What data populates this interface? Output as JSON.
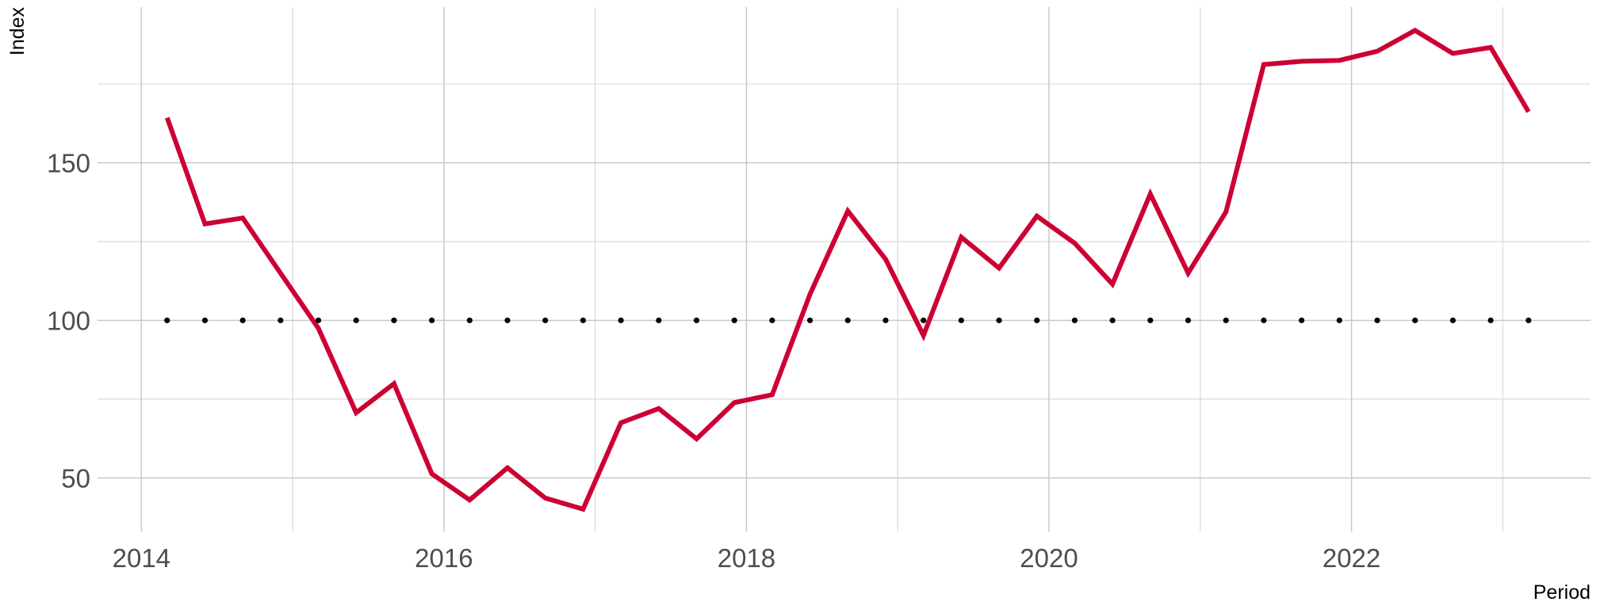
{
  "chart_data": {
    "type": "line",
    "x_label": "Period",
    "y_label": "Index",
    "x": [
      2014.17,
      2014.42,
      2014.67,
      2014.92,
      2015.17,
      2015.42,
      2015.67,
      2015.92,
      2016.17,
      2016.42,
      2016.67,
      2016.92,
      2017.17,
      2017.42,
      2017.67,
      2017.92,
      2018.17,
      2018.42,
      2018.67,
      2018.92,
      2019.17,
      2019.42,
      2019.67,
      2019.92,
      2020.17,
      2020.42,
      2020.67,
      2020.92,
      2021.17,
      2021.42,
      2021.67,
      2021.92,
      2022.17,
      2022.42,
      2022.67,
      2022.92,
      2023.17
    ],
    "series": [
      {
        "color": "#cc0033",
        "style": "solid",
        "values": [
          164.3,
          130.6,
          132.5,
          115,
          97.5,
          70.7,
          79.9,
          51.3,
          43,
          53.2,
          43.6,
          40.1,
          67.5,
          72,
          62.4,
          73.9,
          76.4,
          108.3,
          134.7,
          119.4,
          95.2,
          126.4,
          116.6,
          133.1,
          124.5,
          111.5,
          140.1,
          115,
          134.4,
          181.2,
          182.2,
          182.5,
          185.4,
          192,
          184.7,
          186.6,
          166.2
        ]
      },
      {
        "color": "#000000",
        "style": "dotted",
        "values": [
          100,
          100,
          100,
          100,
          100,
          100,
          100,
          100,
          100,
          100,
          100,
          100,
          100,
          100,
          100,
          100,
          100,
          100,
          100,
          100,
          100,
          100,
          100,
          100,
          100,
          100,
          100,
          100,
          100,
          100,
          100,
          100,
          100,
          100,
          100,
          100,
          100
        ]
      }
    ],
    "xlim": [
      2013.71,
      2023.58
    ],
    "ylim": [
      33,
      199.4
    ],
    "xticks": [
      2014,
      2016,
      2018,
      2020,
      2022
    ],
    "x_minor_ticks": [
      2015,
      2017,
      2019,
      2021,
      2023
    ],
    "yticks": [
      50,
      100,
      150
    ],
    "y_minor_ticks": [
      75,
      125,
      175
    ],
    "grid": true
  }
}
